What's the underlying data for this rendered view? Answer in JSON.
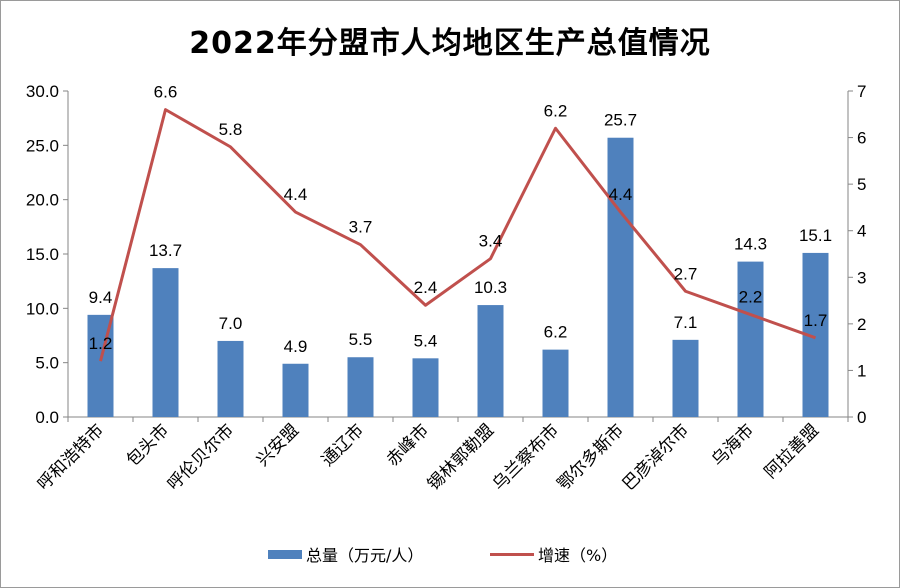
{
  "chart_data": {
    "type": "bar+line",
    "title": "2022年分盟市人均地区生产总值情况",
    "categories": [
      "呼和浩特市",
      "包头市",
      "呼伦贝尔市",
      "兴安盟",
      "通辽市",
      "赤峰市",
      "锡林郭勒盟",
      "乌兰察布市",
      "鄂尔多斯市",
      "巴彦淖尔市",
      "乌海市",
      "阿拉善盟"
    ],
    "series": [
      {
        "name": "总量（万元/人）",
        "type": "bar",
        "axis": "left",
        "color": "#4f81bd",
        "values": [
          9.4,
          13.7,
          7.0,
          4.9,
          5.5,
          5.4,
          10.3,
          6.2,
          25.7,
          7.1,
          14.3,
          15.1
        ]
      },
      {
        "name": "增速（%）",
        "type": "line",
        "axis": "right",
        "color": "#c0504d",
        "values": [
          1.2,
          6.6,
          5.8,
          4.4,
          3.7,
          2.4,
          3.4,
          6.2,
          4.4,
          2.7,
          2.2,
          1.7
        ]
      }
    ],
    "y_left": {
      "min": 0,
      "max": 30,
      "step": 5,
      "ticks": [
        "0.0",
        "5.0",
        "10.0",
        "15.0",
        "20.0",
        "25.0",
        "30.0"
      ]
    },
    "y_right": {
      "min": 0,
      "max": 7,
      "step": 1,
      "ticks": [
        "0",
        "1",
        "2",
        "3",
        "4",
        "5",
        "6",
        "7"
      ]
    },
    "legend_position": "bottom",
    "grid": false
  }
}
